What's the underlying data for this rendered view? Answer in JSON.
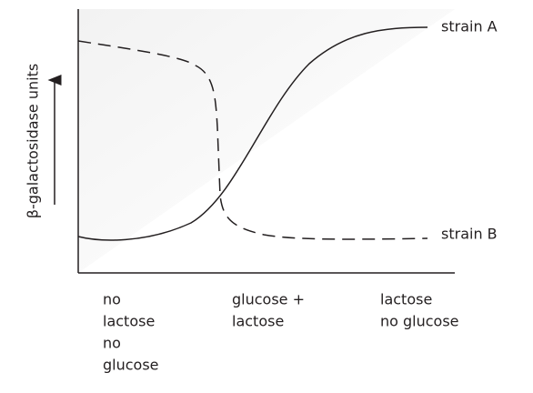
{
  "y_axis_label": "β-galactosidase units",
  "curves": [
    {
      "label": "strain A"
    },
    {
      "label": "strain B"
    }
  ],
  "conditions": [
    [
      "no",
      "lactose",
      "no",
      "glucose"
    ],
    [
      "glucose +",
      "lactose"
    ],
    [
      "lactose",
      "no glucose"
    ]
  ]
}
